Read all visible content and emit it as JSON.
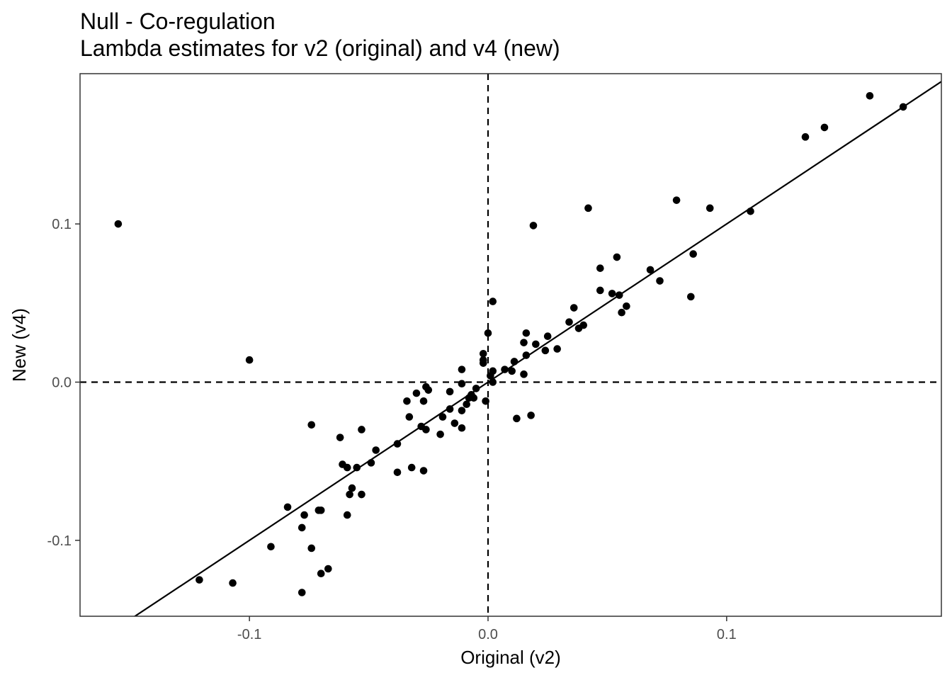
{
  "chart_data": {
    "type": "scatter",
    "title": "Null - Co-regulation",
    "subtitle": "Lambda estimates for v2 (original) and v4 (new)",
    "xlabel": "Original (v2)",
    "ylabel": "New (v4)",
    "xlim": [
      -0.171,
      0.19
    ],
    "ylim": [
      -0.148,
      0.195
    ],
    "x_ticks": [
      -0.1,
      0.0,
      0.1
    ],
    "x_tick_labels": [
      "-0.1",
      "0.0",
      "0.1"
    ],
    "y_ticks": [
      -0.1,
      0.0,
      0.1
    ],
    "y_tick_labels": [
      "-0.1",
      "0.0",
      "0.1"
    ],
    "grid": false,
    "reference_lines": {
      "x": 0,
      "y": 0,
      "style": "dashed"
    },
    "fit_line": {
      "slope": 1.0,
      "intercept": 0.0
    },
    "point_color": "#000000",
    "points": [
      {
        "x": -0.155,
        "y": 0.1
      },
      {
        "x": -0.1,
        "y": 0.014
      },
      {
        "x": 0.16,
        "y": 0.181
      },
      {
        "x": 0.174,
        "y": 0.174
      },
      {
        "x": 0.133,
        "y": 0.155
      },
      {
        "x": 0.141,
        "y": 0.161
      },
      {
        "x": 0.079,
        "y": 0.115
      },
      {
        "x": 0.093,
        "y": 0.11
      },
      {
        "x": 0.042,
        "y": 0.11
      },
      {
        "x": 0.11,
        "y": 0.108
      },
      {
        "x": 0.019,
        "y": 0.099
      },
      {
        "x": 0.054,
        "y": 0.079
      },
      {
        "x": 0.086,
        "y": 0.081
      },
      {
        "x": 0.047,
        "y": 0.072
      },
      {
        "x": 0.068,
        "y": 0.071
      },
      {
        "x": 0.072,
        "y": 0.064
      },
      {
        "x": 0.047,
        "y": 0.058
      },
      {
        "x": 0.052,
        "y": 0.056
      },
      {
        "x": 0.055,
        "y": 0.055
      },
      {
        "x": 0.085,
        "y": 0.054
      },
      {
        "x": 0.002,
        "y": 0.051
      },
      {
        "x": 0.058,
        "y": 0.048
      },
      {
        "x": 0.036,
        "y": 0.047
      },
      {
        "x": 0.056,
        "y": 0.044
      },
      {
        "x": 0.034,
        "y": 0.038
      },
      {
        "x": 0.04,
        "y": 0.036
      },
      {
        "x": 0.038,
        "y": 0.034
      },
      {
        "x": 0.0,
        "y": 0.031
      },
      {
        "x": 0.016,
        "y": 0.031
      },
      {
        "x": 0.025,
        "y": 0.029
      },
      {
        "x": 0.015,
        "y": 0.025
      },
      {
        "x": 0.02,
        "y": 0.024
      },
      {
        "x": 0.029,
        "y": 0.021
      },
      {
        "x": 0.024,
        "y": 0.02
      },
      {
        "x": -0.002,
        "y": 0.018
      },
      {
        "x": 0.016,
        "y": 0.017
      },
      {
        "x": -0.002,
        "y": 0.014
      },
      {
        "x": -0.002,
        "y": 0.012
      },
      {
        "x": 0.011,
        "y": 0.013
      },
      {
        "x": -0.011,
        "y": 0.008
      },
      {
        "x": 0.007,
        "y": 0.008
      },
      {
        "x": 0.002,
        "y": 0.007
      },
      {
        "x": 0.01,
        "y": 0.007
      },
      {
        "x": 0.001,
        "y": 0.004
      },
      {
        "x": 0.015,
        "y": 0.005
      },
      {
        "x": 0.002,
        "y": 0.0
      },
      {
        "x": -0.011,
        "y": -0.001
      },
      {
        "x": -0.026,
        "y": -0.003
      },
      {
        "x": -0.025,
        "y": -0.005
      },
      {
        "x": -0.005,
        "y": -0.004
      },
      {
        "x": -0.03,
        "y": -0.007
      },
      {
        "x": -0.016,
        "y": -0.006
      },
      {
        "x": -0.007,
        "y": -0.008
      },
      {
        "x": -0.006,
        "y": -0.01
      },
      {
        "x": -0.008,
        "y": -0.01
      },
      {
        "x": -0.034,
        "y": -0.012
      },
      {
        "x": -0.027,
        "y": -0.012
      },
      {
        "x": -0.001,
        "y": -0.012
      },
      {
        "x": -0.009,
        "y": -0.014
      },
      {
        "x": -0.016,
        "y": -0.017
      },
      {
        "x": -0.011,
        "y": -0.018
      },
      {
        "x": -0.019,
        "y": -0.022
      },
      {
        "x": -0.033,
        "y": -0.022
      },
      {
        "x": 0.018,
        "y": -0.021
      },
      {
        "x": 0.012,
        "y": -0.023
      },
      {
        "x": -0.014,
        "y": -0.026
      },
      {
        "x": -0.028,
        "y": -0.028
      },
      {
        "x": -0.074,
        "y": -0.027
      },
      {
        "x": -0.011,
        "y": -0.029
      },
      {
        "x": -0.053,
        "y": -0.03
      },
      {
        "x": -0.026,
        "y": -0.03
      },
      {
        "x": -0.02,
        "y": -0.033
      },
      {
        "x": -0.062,
        "y": -0.035
      },
      {
        "x": -0.038,
        "y": -0.039
      },
      {
        "x": -0.047,
        "y": -0.043
      },
      {
        "x": -0.049,
        "y": -0.051
      },
      {
        "x": -0.061,
        "y": -0.052
      },
      {
        "x": -0.059,
        "y": -0.054
      },
      {
        "x": -0.055,
        "y": -0.054
      },
      {
        "x": -0.032,
        "y": -0.054
      },
      {
        "x": -0.027,
        "y": -0.056
      },
      {
        "x": -0.038,
        "y": -0.057
      },
      {
        "x": -0.057,
        "y": -0.067
      },
      {
        "x": -0.058,
        "y": -0.071
      },
      {
        "x": -0.053,
        "y": -0.071
      },
      {
        "x": -0.084,
        "y": -0.079
      },
      {
        "x": -0.071,
        "y": -0.081
      },
      {
        "x": -0.07,
        "y": -0.081
      },
      {
        "x": -0.077,
        "y": -0.084
      },
      {
        "x": -0.059,
        "y": -0.084
      },
      {
        "x": -0.078,
        "y": -0.092
      },
      {
        "x": -0.091,
        "y": -0.104
      },
      {
        "x": -0.074,
        "y": -0.105
      },
      {
        "x": -0.067,
        "y": -0.118
      },
      {
        "x": -0.07,
        "y": -0.121
      },
      {
        "x": -0.121,
        "y": -0.125
      },
      {
        "x": -0.107,
        "y": -0.127
      },
      {
        "x": -0.078,
        "y": -0.133
      }
    ]
  }
}
